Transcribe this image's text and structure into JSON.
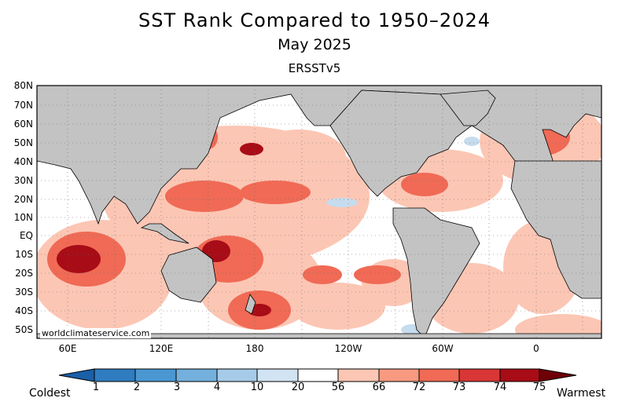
{
  "title": "SST Rank Compared to 1950–2024",
  "subtitle": "May 2025",
  "dataset": "ERSSTv5",
  "watermark": "worldclimateservice.com",
  "lat_ticks": [
    "80N",
    "70N",
    "60N",
    "50N",
    "40N",
    "30N",
    "20N",
    "10N",
    "EQ",
    "10S",
    "20S",
    "30S",
    "40S",
    "50S"
  ],
  "lon_ticks": [
    "60E",
    "120E",
    "180",
    "120W",
    "60W",
    "0"
  ],
  "colorbar": {
    "left_label": "Coldest",
    "right_label": "Warmest",
    "tick_labels": [
      "1",
      "2",
      "3",
      "4",
      "10",
      "20",
      "56",
      "66",
      "72",
      "73",
      "74",
      "75"
    ],
    "colors": [
      "#1a5fa8",
      "#2f7cc0",
      "#4a97d1",
      "#73b0dd",
      "#a6cbe9",
      "#d2e3f3",
      "#ffffff",
      "#fcc6b4",
      "#f99a80",
      "#f06a55",
      "#d93636",
      "#a80c16",
      "#6e0008"
    ]
  },
  "colors": {
    "land": "#c3c3c3",
    "coast": "#000000",
    "grid": "#666666"
  }
}
